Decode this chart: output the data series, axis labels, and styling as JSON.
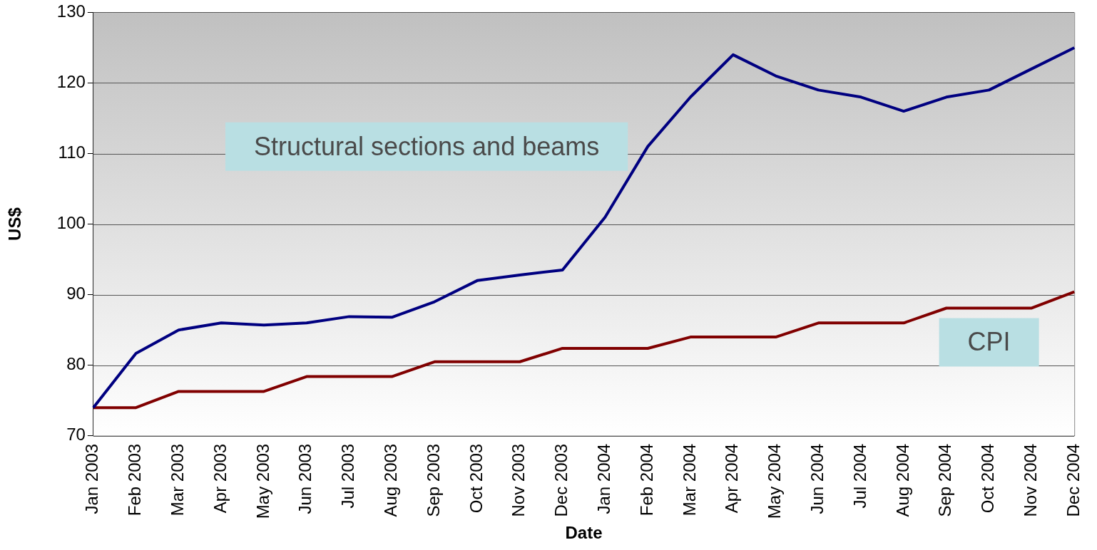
{
  "chart_data": {
    "type": "line",
    "xlabel": "Date",
    "ylabel": "US$",
    "categories": [
      "Jan 2003",
      "Feb 2003",
      "Mar 2003",
      "Apr 2003",
      "May 2003",
      "Jun 2003",
      "Jul 2003",
      "Aug 2003",
      "Sep 2003",
      "Oct 2003",
      "Nov 2003",
      "Dec 2003",
      "Jan 2004",
      "Feb 2004",
      "Mar 2004",
      "Apr 2004",
      "May 2004",
      "Jun 2004",
      "Jul 2004",
      "Aug 2004",
      "Sep 2004",
      "Oct 2004",
      "Nov 2004",
      "Dec 2004"
    ],
    "series": [
      {
        "name": "Structural sections and beams",
        "color": "#000080",
        "values": [
          74,
          81.7,
          85,
          86,
          85.7,
          86,
          86.9,
          86.8,
          89,
          92,
          92.8,
          93.5,
          101,
          111,
          118,
          124,
          121,
          119,
          118,
          116,
          118,
          119,
          122,
          125
        ]
      },
      {
        "name": "CPI",
        "color": "#800000",
        "values": [
          74,
          74,
          76.3,
          76.3,
          76.3,
          78.4,
          78.4,
          78.4,
          80.5,
          80.5,
          80.5,
          82.4,
          82.4,
          82.4,
          84,
          84,
          84,
          86,
          86,
          86,
          88.1,
          88.1,
          88.1,
          90.4
        ]
      }
    ],
    "ylim": [
      70,
      130
    ],
    "yticks": [
      70,
      80,
      90,
      100,
      110,
      120,
      130
    ],
    "grid": "y",
    "legend": false,
    "marker": "none",
    "line_style": "solid"
  }
}
